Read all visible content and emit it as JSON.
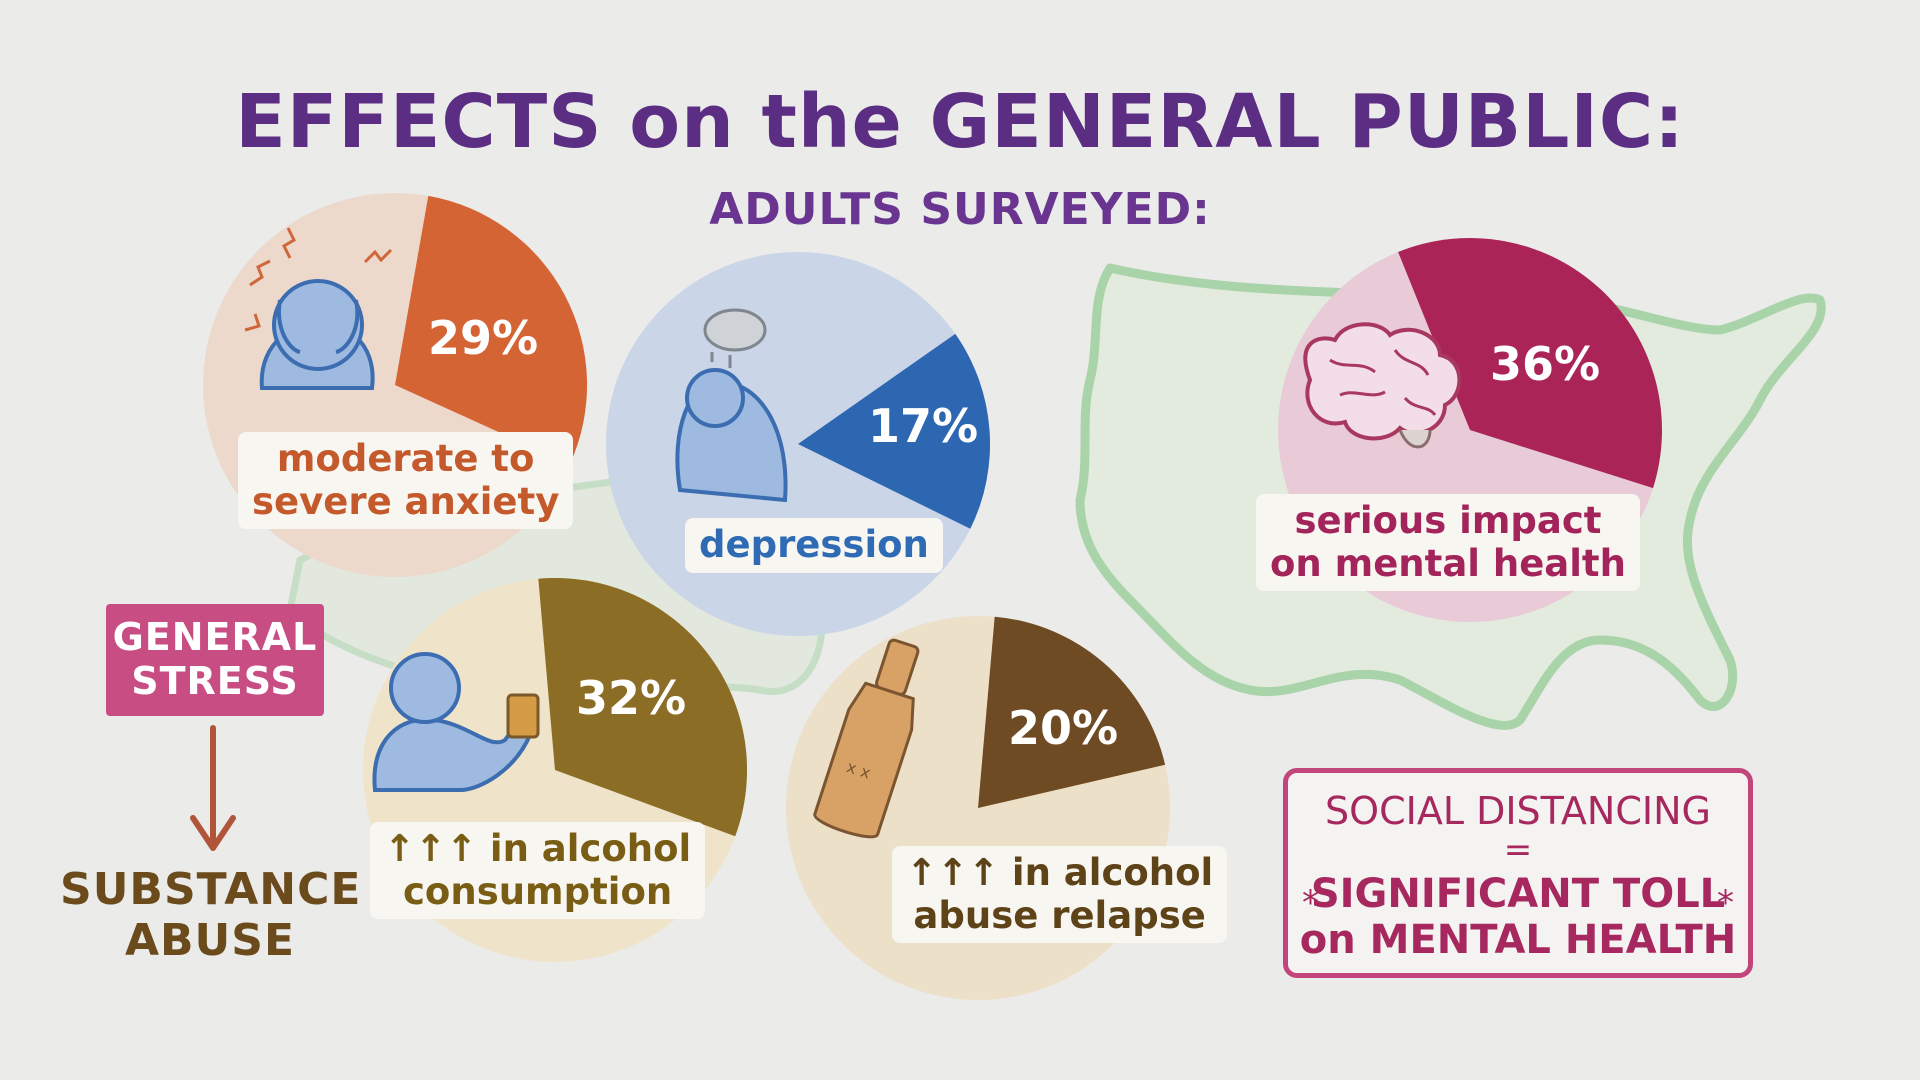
{
  "title": "EFFECTS on the GENERAL PUBLIC:",
  "subtitle": "ADULTS SURVEYED:",
  "stats": {
    "anxiety": {
      "percent": "29%",
      "value": 29,
      "label_line1": "moderate to",
      "label_line2": "severe anxiety",
      "color": "#d56435",
      "bg": "#ecd9cc"
    },
    "depression": {
      "percent": "17%",
      "value": 17,
      "label_line1": "depression",
      "color": "#2e67b1",
      "bg": "#c8d5e8"
    },
    "mental": {
      "percent": "36%",
      "value": 36,
      "label_line1": "serious impact",
      "label_line2": "on mental health",
      "color": "#ab2458",
      "bg": "#e8cbd7"
    },
    "alcohol_consumption": {
      "percent": "32%",
      "value": 32,
      "label_line1": "↑↑↑ in alcohol",
      "label_line2": "consumption",
      "color": "#8b6d25",
      "bg": "#efe4c9"
    },
    "alcohol_relapse": {
      "percent": "20%",
      "value": 20,
      "label_line1": "↑↑↑ in alcohol",
      "label_line2": "abuse relapse",
      "color": "#6e4b22",
      "bg": "#ede0c8"
    }
  },
  "general_stress": {
    "line1": "GENERAL",
    "line2": "STRESS"
  },
  "substance_abuse": {
    "line1": "SUBSTANCE",
    "line2": "ABUSE"
  },
  "social": {
    "line1": "SOCIAL DISTANCING",
    "line2": "=",
    "line3": "SIGNIFICANT TOLL",
    "line4": "on MENTAL HEALTH",
    "star": "*"
  }
}
